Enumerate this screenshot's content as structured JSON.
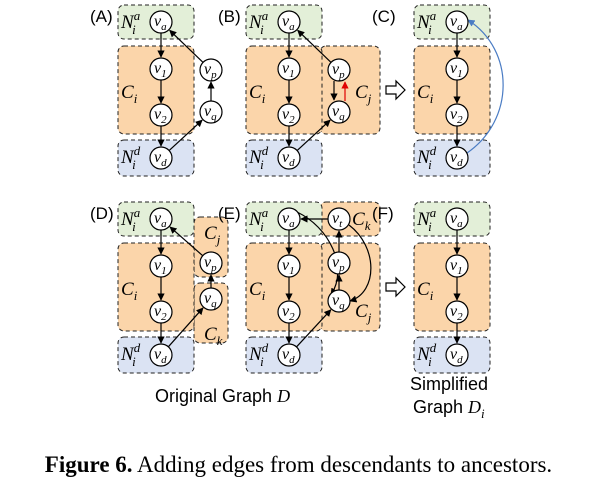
{
  "panels": [
    {
      "id": "A",
      "label": "(A)"
    },
    {
      "id": "B",
      "label": "(B)"
    },
    {
      "id": "C",
      "label": "(C)"
    },
    {
      "id": "D",
      "label": "(D)"
    },
    {
      "id": "E",
      "label": "(E)"
    },
    {
      "id": "F",
      "label": "(F)"
    }
  ],
  "nodes": {
    "va": {
      "base": "v",
      "sub": "a"
    },
    "v1": {
      "base": "v",
      "sub": "1"
    },
    "v2": {
      "base": "v",
      "sub": "2"
    },
    "vd": {
      "base": "v",
      "sub": "d"
    },
    "vp": {
      "base": "v",
      "sub": "p"
    },
    "vq": {
      "base": "v",
      "sub": "q"
    },
    "vt": {
      "base": "v",
      "sub": "t"
    }
  },
  "groups": {
    "ancestors": {
      "base": "N",
      "sub": "i",
      "sup": "a"
    },
    "descendants": {
      "base": "N",
      "sub": "i",
      "sup": "d"
    },
    "ci": {
      "base": "C",
      "sub": "i"
    },
    "cj": {
      "base": "C",
      "sub": "j"
    },
    "ck": {
      "base": "C",
      "sub": "k"
    }
  },
  "labels": {
    "original": "Original Graph ",
    "original_var": "D",
    "simplified_line1": "Simplified",
    "simplified_line2": "Graph ",
    "simplified_var": "D",
    "simplified_sub": "i"
  },
  "caption": {
    "prefix": "Figure 6.",
    "text": " Adding edges from descendants to ancestors."
  },
  "colors": {
    "green": "#e3efd8",
    "orange": "#fbd5aa",
    "blue": "#dbe3f3",
    "node_fill": "#ffffff",
    "red_edge": "#e00000",
    "blue_edge": "#4a7cc4"
  }
}
